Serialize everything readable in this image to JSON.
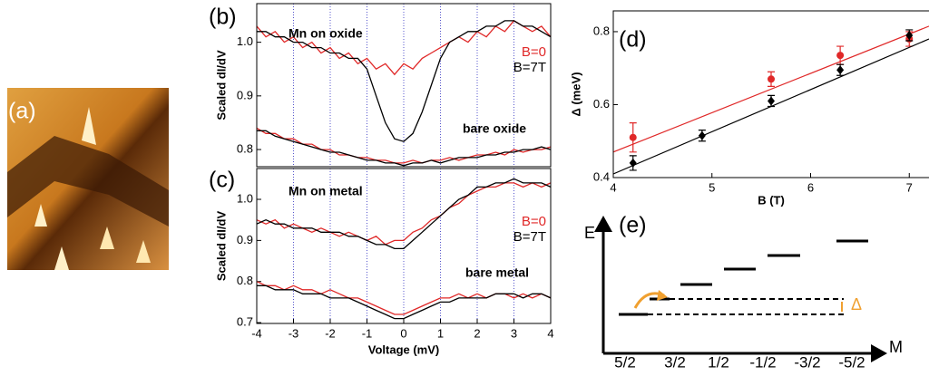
{
  "image_panel": {
    "label": "(a)"
  },
  "chart_data": [
    {
      "type": "line",
      "label": "(b)",
      "ylabel": "Scaled dI/dV",
      "annotations": [
        "Mn on oxide",
        "bare oxide"
      ],
      "x": [
        -4,
        -3.75,
        -3.5,
        -3.25,
        -3,
        -2.75,
        -2.5,
        -2.25,
        -2,
        -1.75,
        -1.5,
        -1.25,
        -1,
        -0.75,
        -0.5,
        -0.25,
        0,
        0.25,
        0.5,
        0.75,
        1,
        1.25,
        1.5,
        1.75,
        2,
        2.25,
        2.5,
        2.75,
        3,
        3.25,
        3.5,
        3.75,
        4
      ],
      "xlim": [
        -4,
        4
      ],
      "ylim": [
        0.768,
        1.072
      ],
      "yticks": [
        0.8,
        0.9,
        {
          "value": 1,
          "label": "1.0"
        }
      ],
      "grid": true,
      "series": [
        {
          "name": "B=0",
          "color": "#e02828",
          "values": [
            1.03,
            1.01,
            1.02,
            1.0,
            1.01,
            0.99,
            1.0,
            0.98,
            0.99,
            0.97,
            0.98,
            0.96,
            0.97,
            0.95,
            0.96,
            0.94,
            0.96,
            0.95,
            0.97,
            0.98,
            0.99,
            1.0,
            1.01,
            1.0,
            1.02,
            1.01,
            1.03,
            1.02,
            1.04,
            1.03,
            1.02,
            1.03,
            1.01
          ]
        },
        {
          "name": "B=7T",
          "color": "#000000",
          "values": [
            1.02,
            1.02,
            1.01,
            1.01,
            1.0,
            1.0,
            0.99,
            0.99,
            0.98,
            0.98,
            0.97,
            0.97,
            0.95,
            0.9,
            0.85,
            0.82,
            0.815,
            0.83,
            0.87,
            0.92,
            0.97,
            1.0,
            1.01,
            1.02,
            1.02,
            1.03,
            1.03,
            1.04,
            1.04,
            1.03,
            1.03,
            1.02,
            1.01
          ]
        },
        {
          "color": "#e02828",
          "values": [
            0.84,
            0.83,
            0.83,
            0.82,
            0.82,
            0.81,
            0.81,
            0.8,
            0.8,
            0.79,
            0.79,
            0.785,
            0.785,
            0.78,
            0.78,
            0.775,
            0.775,
            0.78,
            0.775,
            0.78,
            0.78,
            0.785,
            0.78,
            0.785,
            0.79,
            0.79,
            0.795,
            0.79,
            0.8,
            0.795,
            0.8,
            0.8,
            0.805
          ]
        },
        {
          "color": "#000000",
          "values": [
            0.835,
            0.835,
            0.825,
            0.82,
            0.815,
            0.81,
            0.805,
            0.8,
            0.795,
            0.795,
            0.79,
            0.785,
            0.78,
            0.78,
            0.775,
            0.775,
            0.77,
            0.775,
            0.775,
            0.78,
            0.775,
            0.78,
            0.785,
            0.785,
            0.785,
            0.79,
            0.79,
            0.795,
            0.795,
            0.8,
            0.8,
            0.805,
            0.8
          ]
        }
      ]
    },
    {
      "type": "line",
      "label": "(c)",
      "ylabel": "Scaled dI/dV",
      "xlabel": "Voltage (mV)",
      "annotations": [
        "Mn on metal",
        "bare metal"
      ],
      "x": [
        -4,
        -3.75,
        -3.5,
        -3.25,
        -3,
        -2.75,
        -2.5,
        -2.25,
        -2,
        -1.75,
        -1.5,
        -1.25,
        -1,
        -0.75,
        -0.5,
        -0.25,
        0,
        0.25,
        0.5,
        0.75,
        1,
        1.25,
        1.5,
        1.75,
        2,
        2.25,
        2.5,
        2.75,
        3,
        3.25,
        3.5,
        3.75,
        4
      ],
      "xlim": [
        -4,
        4
      ],
      "xticks": [
        -4,
        -3,
        -2,
        -1,
        0,
        1,
        2,
        3,
        4
      ],
      "ylim": [
        0.698,
        1.075
      ],
      "yticks": [
        0.7,
        0.8,
        0.9,
        {
          "value": 1,
          "label": "1.0"
        }
      ],
      "grid": true,
      "series": [
        {
          "name": "B=0",
          "color": "#e02828",
          "values": [
            0.95,
            0.94,
            0.95,
            0.93,
            0.94,
            0.93,
            0.92,
            0.93,
            0.92,
            0.91,
            0.92,
            0.91,
            0.9,
            0.91,
            0.89,
            0.9,
            0.9,
            0.92,
            0.93,
            0.95,
            0.96,
            0.98,
            0.99,
            1.01,
            1.02,
            1.03,
            1.03,
            1.04,
            1.04,
            1.03,
            1.04,
            1.03,
            1.04
          ]
        },
        {
          "name": "B=7T",
          "color": "#000000",
          "values": [
            0.94,
            0.95,
            0.94,
            0.94,
            0.93,
            0.93,
            0.93,
            0.92,
            0.92,
            0.92,
            0.91,
            0.91,
            0.9,
            0.89,
            0.89,
            0.88,
            0.88,
            0.9,
            0.92,
            0.94,
            0.96,
            0.98,
            1.0,
            1.01,
            1.03,
            1.03,
            1.04,
            1.04,
            1.05,
            1.04,
            1.04,
            1.04,
            1.03
          ]
        },
        {
          "color": "#e02828",
          "values": [
            0.8,
            0.79,
            0.79,
            0.78,
            0.79,
            0.78,
            0.78,
            0.77,
            0.78,
            0.77,
            0.76,
            0.76,
            0.75,
            0.74,
            0.73,
            0.72,
            0.72,
            0.73,
            0.74,
            0.75,
            0.76,
            0.76,
            0.77,
            0.76,
            0.77,
            0.76,
            0.77,
            0.77,
            0.76,
            0.77,
            0.76,
            0.77,
            0.76
          ]
        },
        {
          "color": "#000000",
          "values": [
            0.79,
            0.79,
            0.78,
            0.78,
            0.78,
            0.77,
            0.77,
            0.77,
            0.76,
            0.76,
            0.76,
            0.75,
            0.74,
            0.73,
            0.72,
            0.71,
            0.71,
            0.72,
            0.73,
            0.74,
            0.75,
            0.75,
            0.76,
            0.76,
            0.76,
            0.76,
            0.77,
            0.77,
            0.77,
            0.76,
            0.77,
            0.77,
            0.76
          ]
        }
      ]
    },
    {
      "type": "scatter",
      "label": "(d)",
      "xlabel": "B (T)",
      "ylabel": "Δ (meV)",
      "xlim": [
        4,
        7.2
      ],
      "ylim": [
        0.4,
        0.857
      ],
      "xticks": [
        4,
        5,
        6,
        7
      ],
      "yticks": [
        0.4,
        0.6,
        0.8
      ],
      "series": [
        {
          "color": "#e02828",
          "marker": "circle",
          "x": [
            4.2,
            5.6,
            6.3,
            7
          ],
          "values": [
            0.51,
            0.67,
            0.735,
            0.78
          ],
          "errors": [
            0.04,
            0.02,
            0.025,
            0.02
          ],
          "fit": {
            "x": [
              4,
              7.2
            ],
            "values": [
              0.47,
              0.815
            ]
          }
        },
        {
          "color": "#000000",
          "marker": "diamond",
          "x": [
            4.2,
            4.9,
            5.6,
            6.3,
            7
          ],
          "values": [
            0.44,
            0.515,
            0.61,
            0.695,
            0.79
          ],
          "errors": [
            0.02,
            0.015,
            0.015,
            0.015,
            0.015
          ],
          "fit": {
            "x": [
              4,
              7.2
            ],
            "values": [
              0.41,
              0.78
            ]
          }
        }
      ]
    }
  ],
  "energy_diagram": {
    "label": "(e)",
    "energy_axis": "E",
    "m_axis": "M",
    "gap": "Δ",
    "m_labels": [
      "5/2",
      "3/2",
      "1/2",
      "-1/2",
      "-3/2",
      "-5/2"
    ]
  }
}
